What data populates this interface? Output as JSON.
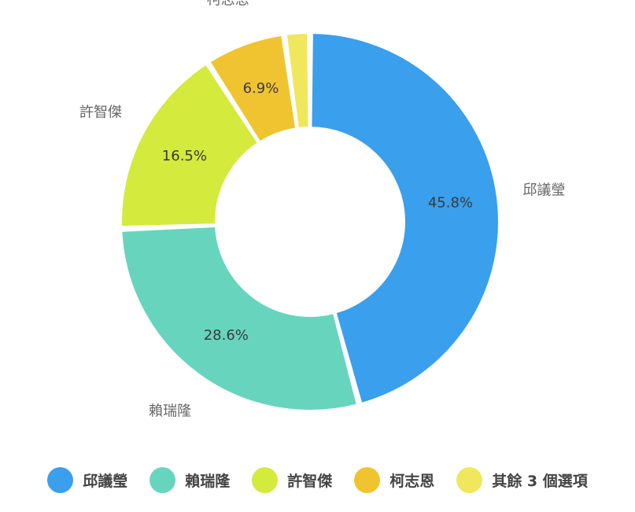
{
  "chart_data": {
    "type": "pie",
    "donut": true,
    "slices": [
      {
        "name": "邱議瑩",
        "value": 45.8,
        "label": "45.8%",
        "color": "#3a9fec"
      },
      {
        "name": "賴瑞隆",
        "value": 28.6,
        "label": "28.6%",
        "color": "#67d5bd"
      },
      {
        "name": "許智傑",
        "value": 16.5,
        "label": "16.5%",
        "color": "#d4ea3c"
      },
      {
        "name": "柯志恩",
        "value": 6.9,
        "label": "6.9%",
        "color": "#f0c430"
      },
      {
        "name": "其餘 3 個選項",
        "value": 2.2,
        "label": "",
        "color": "#f0e75c"
      }
    ],
    "outer_labels": [
      "邱議瑩",
      "賴瑞隆",
      "許智傑",
      "柯志恩"
    ],
    "legend_placement": "bottom"
  },
  "legend": {
    "items": [
      {
        "label": "邱議瑩",
        "color": "#3a9fec"
      },
      {
        "label": "賴瑞隆",
        "color": "#67d5bd"
      },
      {
        "label": "許智傑",
        "color": "#d4ea3c"
      },
      {
        "label": "柯志恩",
        "color": "#f0c430"
      },
      {
        "label": "其餘 3 個選項",
        "color": "#f0e75c"
      }
    ]
  }
}
